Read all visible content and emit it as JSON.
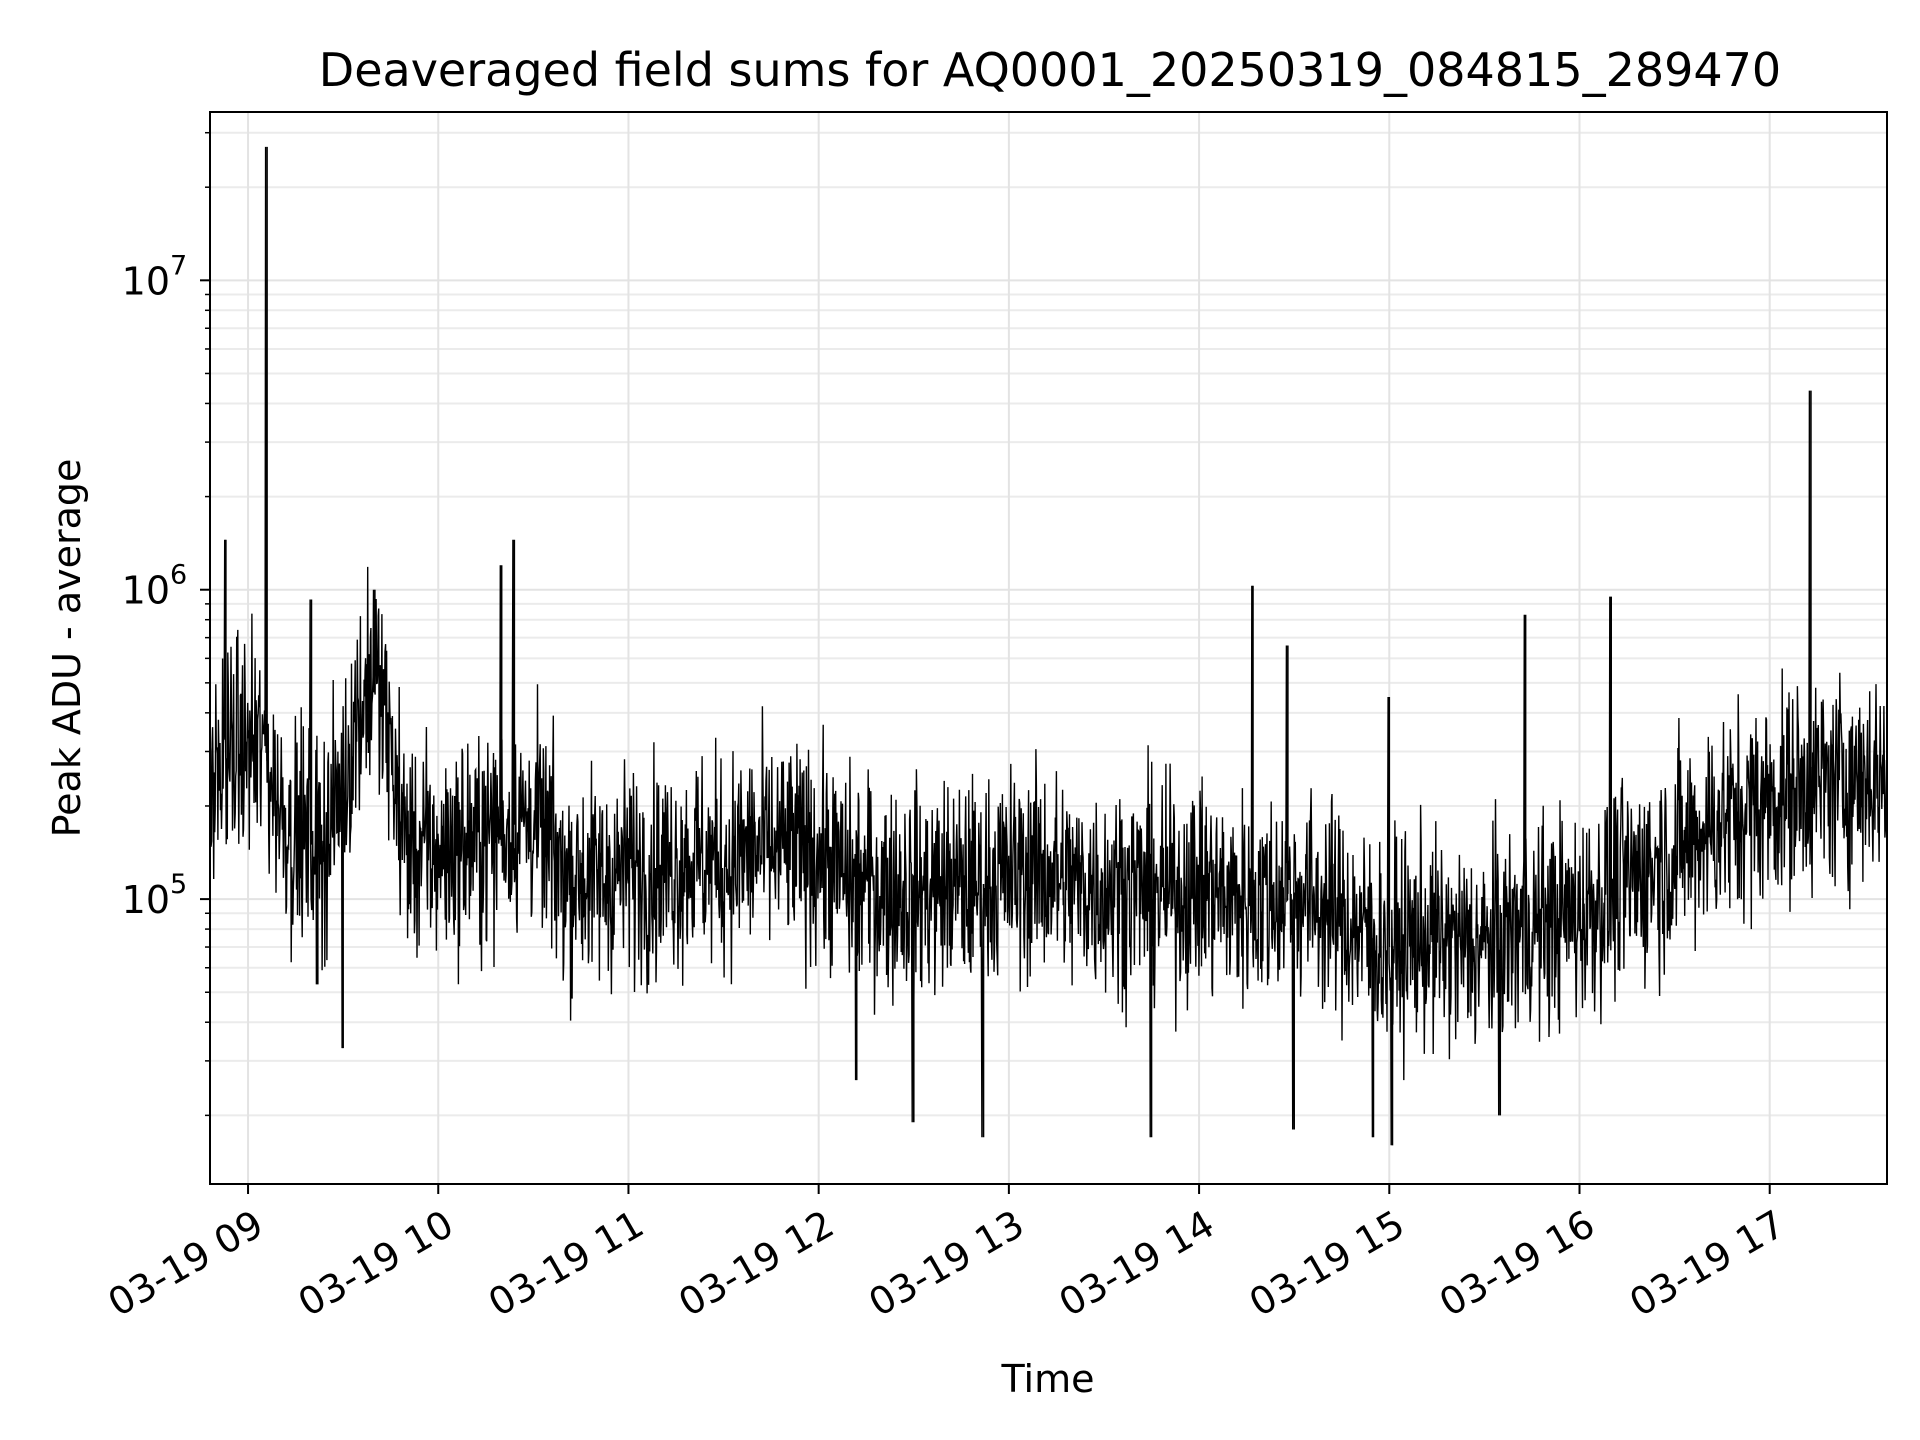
{
  "chart_data": {
    "type": "line",
    "title": "Deaveraged field sums for AQ0001_20250319_084815_289470",
    "xlabel": "Time",
    "ylabel": "Peak ADU - average",
    "x_range": [
      "2025-03-19 08:48",
      "2025-03-19 17:37"
    ],
    "y_scale": "log",
    "ylim": [
      12000,
      35000000
    ],
    "grid": true,
    "grid_minor_y": true,
    "line_color": "#000000",
    "x_ticks": [
      "2025-03-19 09:00",
      "2025-03-19 10:00",
      "2025-03-19 11:00",
      "2025-03-19 12:00",
      "2025-03-19 13:00",
      "2025-03-19 14:00",
      "2025-03-19 15:00",
      "2025-03-19 16:00",
      "2025-03-19 17:00"
    ],
    "x_tick_labels": [
      "03-19 09",
      "03-19 10",
      "03-19 11",
      "03-19 12",
      "03-19 13",
      "03-19 14",
      "03-19 15",
      "03-19 16",
      "03-19 17"
    ],
    "y_ticks": [
      100000,
      1000000,
      10000000
    ],
    "y_tick_labels": [
      {
        "base": "10",
        "exp": "5"
      },
      {
        "base": "10",
        "exp": "6"
      },
      {
        "base": "10",
        "exp": "7"
      }
    ],
    "series": [
      {
        "x": [
          "08:48",
          "08:55",
          "09:02",
          "09:06",
          "09:10",
          "09:15",
          "09:20",
          "09:25",
          "09:30",
          "09:35",
          "09:40",
          "09:45",
          "09:50",
          "09:55",
          "10:00",
          "10:10",
          "10:20",
          "10:30",
          "10:40",
          "10:50",
          "11:00",
          "11:10",
          "11:20",
          "11:30",
          "11:40",
          "11:50",
          "12:00",
          "12:10",
          "12:20",
          "12:30",
          "12:40",
          "12:50",
          "13:00",
          "13:10",
          "13:20",
          "13:30",
          "13:40",
          "13:50",
          "14:00",
          "14:10",
          "14:20",
          "14:30",
          "14:40",
          "14:50",
          "15:00",
          "15:10",
          "15:20",
          "15:30",
          "15:40",
          "15:50",
          "16:00",
          "16:10",
          "16:20",
          "16:30",
          "16:40",
          "16:50",
          "17:00",
          "17:10",
          "17:20",
          "17:30",
          "17:37"
        ],
        "y": [
          250000,
          300000,
          320000,
          280000,
          200000,
          160000,
          150000,
          160000,
          230000,
          420000,
          550000,
          300000,
          150000,
          140000,
          140000,
          150000,
          170000,
          180000,
          120000,
          115000,
          125000,
          125000,
          135000,
          130000,
          145000,
          145000,
          140000,
          115000,
          110000,
          105000,
          110000,
          110000,
          120000,
          125000,
          110000,
          110000,
          110000,
          105000,
          110000,
          100000,
          100000,
          105000,
          95000,
          80000,
          70000,
          75000,
          70000,
          70000,
          80000,
          85000,
          90000,
          105000,
          120000,
          140000,
          170000,
          190000,
          210000,
          230000,
          240000,
          250000,
          250000
        ],
        "peaks": [
          {
            "x": "08:53",
            "y": 1450000
          },
          {
            "x": "09:06",
            "y": 27000000
          },
          {
            "x": "09:20",
            "y": 930000
          },
          {
            "x": "09:40",
            "y": 1000000
          },
          {
            "x": "10:20",
            "y": 1200000
          },
          {
            "x": "10:24",
            "y": 1450000
          },
          {
            "x": "14:17",
            "y": 1030000
          },
          {
            "x": "14:28",
            "y": 660000
          },
          {
            "x": "15:00",
            "y": 450000
          },
          {
            "x": "15:43",
            "y": 830000
          },
          {
            "x": "16:10",
            "y": 950000
          },
          {
            "x": "17:13",
            "y": 4400000
          }
        ],
        "troughs": [
          {
            "x": "09:22",
            "y": 53000
          },
          {
            "x": "09:30",
            "y": 33000
          },
          {
            "x": "12:12",
            "y": 26000
          },
          {
            "x": "12:30",
            "y": 19000
          },
          {
            "x": "12:52",
            "y": 17000
          },
          {
            "x": "13:45",
            "y": 17000
          },
          {
            "x": "14:30",
            "y": 18000
          },
          {
            "x": "14:55",
            "y": 17000
          },
          {
            "x": "15:01",
            "y": 16000
          },
          {
            "x": "15:35",
            "y": 20000
          }
        ]
      }
    ]
  }
}
